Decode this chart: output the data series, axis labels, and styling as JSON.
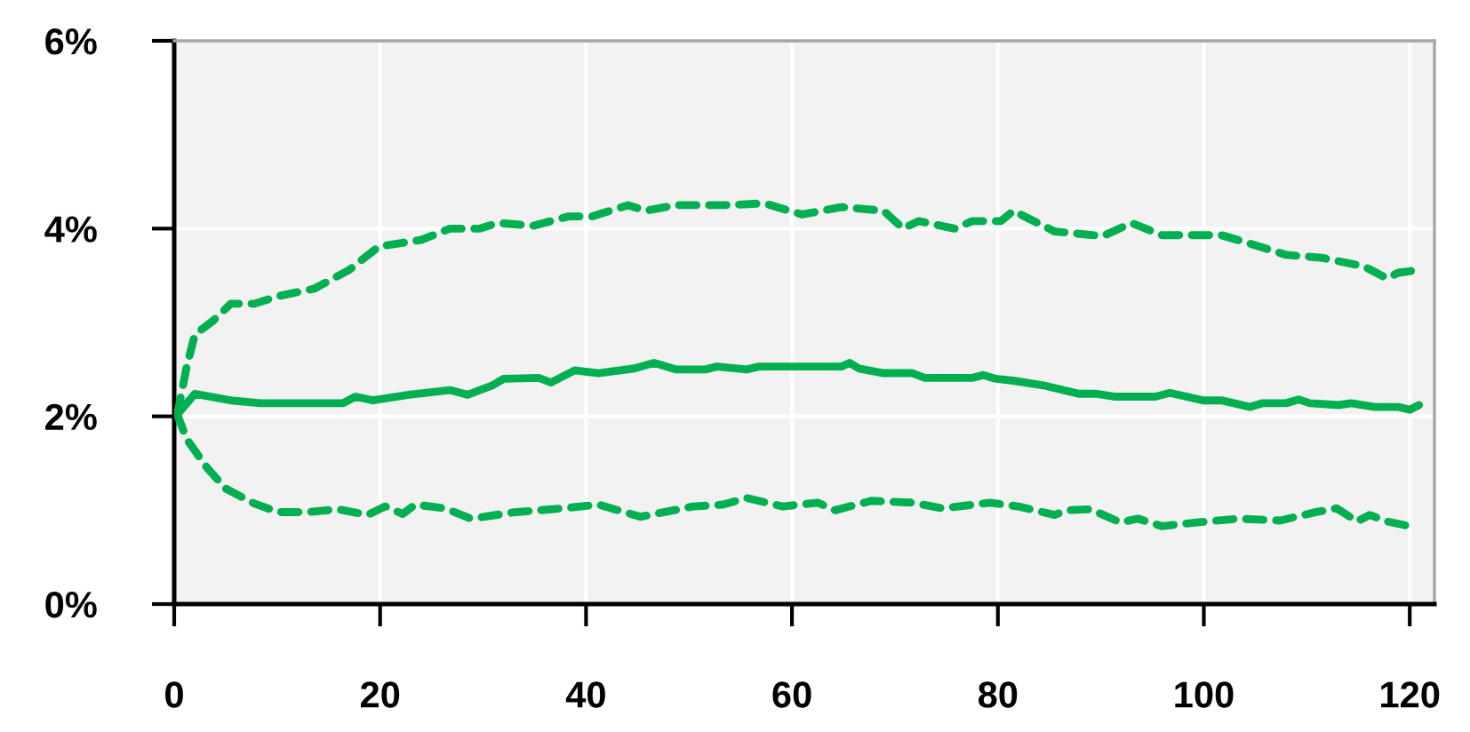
{
  "chart_data": {
    "type": "line",
    "xlim": [
      0,
      122.4
    ],
    "ylim": [
      0,
      6
    ],
    "xticks": [
      0,
      20,
      40,
      60,
      80,
      100,
      120
    ],
    "yticks": [
      {
        "value": 0,
        "label": "0%"
      },
      {
        "value": 2,
        "label": "2%"
      },
      {
        "value": 4,
        "label": "4%"
      },
      {
        "value": 6,
        "label": "6%"
      }
    ],
    "grid": true,
    "marker": "none",
    "series": [
      {
        "color": "#00b050",
        "line_style": "dashed",
        "x": [
          0.3,
          1.2,
          2,
          3.8,
          5.5,
          7.8,
          10.1,
          13.6,
          17,
          19.9,
          24,
          26.8,
          29.7,
          31.4,
          34.9,
          38.3,
          40.6,
          44.1,
          45.8,
          48.7,
          53.9,
          57.3,
          61.0,
          64.8,
          68.9,
          70.8,
          72.3,
          75.8,
          77.5,
          80.3,
          81.5,
          85.5,
          90.2,
          93,
          95.9,
          101.7,
          104.5,
          108,
          111.4,
          115.5,
          117.8,
          118.9,
          120.9
        ],
        "values": [
          2.02,
          2.52,
          2.87,
          3.02,
          3.2,
          3.2,
          3.28,
          3.36,
          3.56,
          3.81,
          3.88,
          4.0,
          4.0,
          4.06,
          4.03,
          4.13,
          4.13,
          4.25,
          4.19,
          4.25,
          4.25,
          4.27,
          4.15,
          4.23,
          4.19,
          4.0,
          4.08,
          4.0,
          4.08,
          4.08,
          4.19,
          3.97,
          3.92,
          4.06,
          3.93,
          3.93,
          3.84,
          3.72,
          3.69,
          3.6,
          3.47,
          3.53,
          3.56
        ]
      },
      {
        "color": "#00b050",
        "line_style": "solid",
        "x": [
          0.3,
          2,
          5.5,
          8.4,
          16.4,
          17.6,
          19.3,
          22.8,
          26.8,
          28.5,
          30.9,
          32,
          35.4,
          36.6,
          38.9,
          41.2,
          44.7,
          46.6,
          48.7,
          51.6,
          52.7,
          55.6,
          56.8,
          62.5,
          64.8,
          65.6,
          66.5,
          68.9,
          71.7,
          72.9,
          77.5,
          78.6,
          79.8,
          81.5,
          84.4,
          87.9,
          89.6,
          91.3,
          95.3,
          96.7,
          99.9,
          101.7,
          104.5,
          105.7,
          108,
          109.2,
          110.3,
          113.1,
          114.3,
          116.6,
          118.9,
          120,
          120.9
        ],
        "values": [
          2.02,
          2.24,
          2.17,
          2.14,
          2.14,
          2.21,
          2.17,
          2.23,
          2.28,
          2.23,
          2.33,
          2.4,
          2.41,
          2.36,
          2.49,
          2.46,
          2.51,
          2.57,
          2.5,
          2.5,
          2.53,
          2.5,
          2.53,
          2.53,
          2.53,
          2.57,
          2.51,
          2.46,
          2.46,
          2.41,
          2.41,
          2.44,
          2.4,
          2.38,
          2.33,
          2.24,
          2.24,
          2.21,
          2.21,
          2.25,
          2.17,
          2.17,
          2.1,
          2.14,
          2.14,
          2.18,
          2.14,
          2.12,
          2.14,
          2.1,
          2.1,
          2.07,
          2.12
        ]
      },
      {
        "color": "#00b050",
        "line_style": "dashed",
        "x": [
          0.3,
          1.2,
          3.2,
          5,
          7.8,
          10.1,
          13,
          15.9,
          18.8,
          20.5,
          22.2,
          23.4,
          26.3,
          28.8,
          33.2,
          37.8,
          41.2,
          45.3,
          50.4,
          53.3,
          55.6,
          59.1,
          62.5,
          64.2,
          67.7,
          71.7,
          74.6,
          79.2,
          82,
          85.5,
          86.7,
          89,
          91.9,
          93.6,
          95.9,
          99.3,
          103.4,
          107.4,
          110.9,
          112.9,
          114.9,
          116.1,
          117.8,
          120
        ],
        "values": [
          2.02,
          1.76,
          1.45,
          1.23,
          1.07,
          0.98,
          0.98,
          1.01,
          0.95,
          1.04,
          0.96,
          1.06,
          1.02,
          0.91,
          0.98,
          1.02,
          1.06,
          0.93,
          1.04,
          1.06,
          1.13,
          1.04,
          1.08,
          1.0,
          1.1,
          1.08,
          1.02,
          1.08,
          1.04,
          0.95,
          1.0,
          1.01,
          0.87,
          0.91,
          0.83,
          0.87,
          0.91,
          0.89,
          0.98,
          1.02,
          0.88,
          0.95,
          0.88,
          0.83
        ]
      }
    ]
  }
}
